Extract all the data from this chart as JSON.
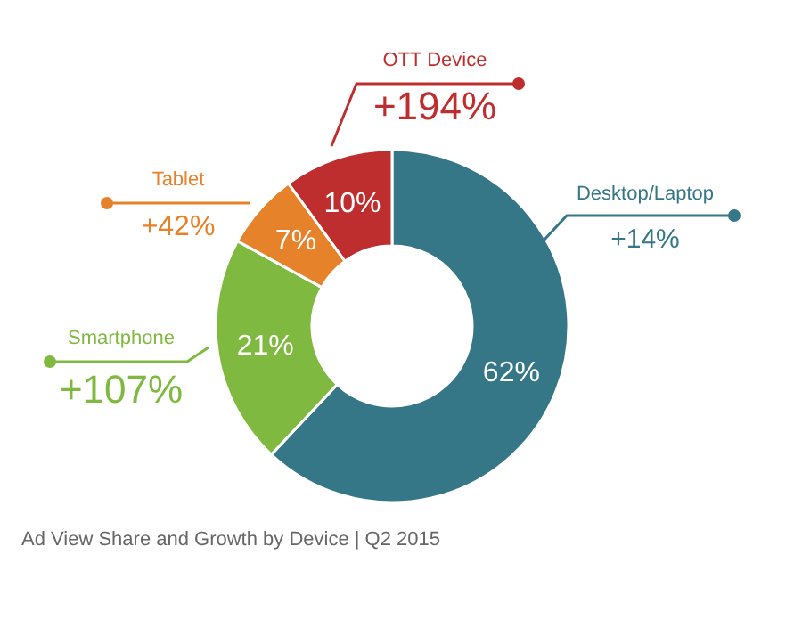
{
  "chart_data": {
    "type": "donut",
    "title": "Ad View Share and Growth by Device | Q2 2015",
    "categories": [
      "Desktop/Laptop",
      "Smartphone",
      "Tablet",
      "OTT Device"
    ],
    "values": [
      62,
      21,
      7,
      10
    ],
    "colors": [
      "#357787",
      "#80b93f",
      "#e6832a",
      "#bf2e2e"
    ],
    "value_labels": [
      "62%",
      "21%",
      "7%",
      "10%"
    ],
    "annotations": [
      "+14%",
      "+107%",
      "+42%",
      "+194%"
    ]
  }
}
